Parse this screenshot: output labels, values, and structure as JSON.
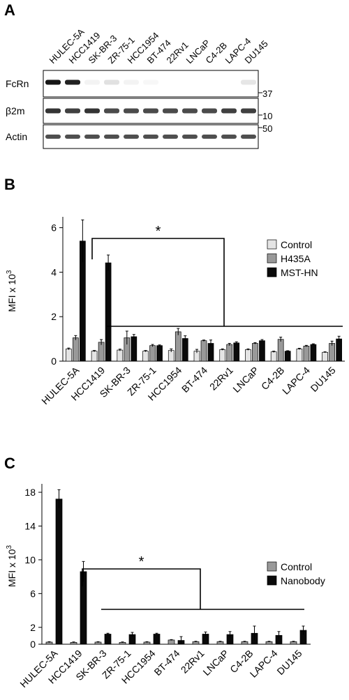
{
  "panel_a": {
    "letter": "A",
    "lanes": [
      "HULEC-5A",
      "HCC1419",
      "SK-BR-3",
      "ZR-75-1",
      "HCC1954",
      "BT-474",
      "22Rv1",
      "LNCaP",
      "C4-2B",
      "LAPC-4",
      "DU145"
    ],
    "blots": [
      {
        "label": "FcRn",
        "marker": "37",
        "band_intensity": [
          0.95,
          0.9,
          0.05,
          0.12,
          0.05,
          0.03,
          0.0,
          0.0,
          0.0,
          0.0,
          0.1
        ]
      },
      {
        "label": "β2m",
        "marker": "10",
        "band_intensity": [
          0.9,
          0.85,
          0.9,
          0.8,
          0.8,
          0.8,
          0.8,
          0.8,
          0.8,
          0.85,
          0.85
        ]
      },
      {
        "label": "Actin",
        "marker": "50",
        "band_intensity": [
          0.9,
          0.9,
          0.9,
          0.9,
          0.9,
          0.9,
          0.9,
          0.9,
          0.9,
          0.9,
          0.9
        ]
      }
    ]
  },
  "chart_data": [
    {
      "letter": "B",
      "type": "bar",
      "ylabel": "MFI x 10",
      "ylabel_sup": "3",
      "ylim": [
        0,
        6.3
      ],
      "yticks": [
        0,
        2,
        4,
        6
      ],
      "categories": [
        "HULEC-5A",
        "HCC1419",
        "SK-BR-3",
        "ZR-75-1",
        "HCC1954",
        "BT-474",
        "22Rv1",
        "LNCaP",
        "C4-2B",
        "LAPC-4",
        "DU145"
      ],
      "series": [
        {
          "name": "Control",
          "color": "#e4e4e4",
          "values": [
            0.55,
            0.45,
            0.5,
            0.45,
            0.48,
            0.45,
            0.52,
            0.52,
            0.42,
            0.55,
            0.4
          ],
          "errors": [
            0.04,
            0.03,
            0.04,
            0.03,
            0.07,
            0.08,
            0.03,
            0.03,
            0.03,
            0.03,
            0.02
          ]
        },
        {
          "name": "H435A",
          "color": "#999999",
          "values": [
            1.05,
            0.85,
            1.05,
            0.7,
            1.32,
            0.92,
            0.75,
            0.8,
            0.98,
            0.68,
            0.8
          ],
          "errors": [
            0.1,
            0.12,
            0.3,
            0.05,
            0.15,
            0.03,
            0.05,
            0.03,
            0.1,
            0.03,
            0.1
          ]
        },
        {
          "name": "MST-HN",
          "color": "#0a0a0a",
          "values": [
            5.4,
            4.42,
            1.1,
            0.7,
            1.02,
            0.8,
            0.82,
            0.92,
            0.45,
            0.75,
            1.0
          ],
          "errors": [
            0.95,
            0.35,
            0.1,
            0.03,
            0.12,
            0.15,
            0.05,
            0.05,
            0.02,
            0.03,
            0.12
          ]
        }
      ],
      "legend_position": "right",
      "significance": "*"
    },
    {
      "letter": "C",
      "type": "bar",
      "ylabel": "MFI x 10",
      "ylabel_sup": "3",
      "ylim": [
        0,
        18.5
      ],
      "yticks": [
        0,
        2,
        6,
        10,
        14,
        18
      ],
      "categories": [
        "HULEC-5A",
        "HCC1419",
        "SK-BR-3",
        "ZR-75-1",
        "HCC1954",
        "BT-474",
        "22Rv1",
        "LNCaP",
        "C4-2B",
        "LAPC-4",
        "DU145"
      ],
      "series": [
        {
          "name": "Control",
          "color": "#999999",
          "values": [
            0.25,
            0.22,
            0.25,
            0.22,
            0.25,
            0.5,
            0.3,
            0.3,
            0.3,
            0.3,
            0.3
          ],
          "errors": [
            0.05,
            0.05,
            0.05,
            0.05,
            0.05,
            0.05,
            0.05,
            0.05,
            0.05,
            0.05,
            0.05
          ]
        },
        {
          "name": "Nanobody",
          "color": "#0a0a0a",
          "values": [
            17.2,
            8.6,
            1.2,
            1.15,
            1.2,
            0.45,
            1.2,
            1.15,
            1.3,
            1.05,
            1.65
          ],
          "errors": [
            1.1,
            1.2,
            0.1,
            0.25,
            0.1,
            0.45,
            0.25,
            0.35,
            0.85,
            0.45,
            0.5
          ]
        }
      ],
      "legend_position": "right",
      "significance": "*"
    }
  ]
}
